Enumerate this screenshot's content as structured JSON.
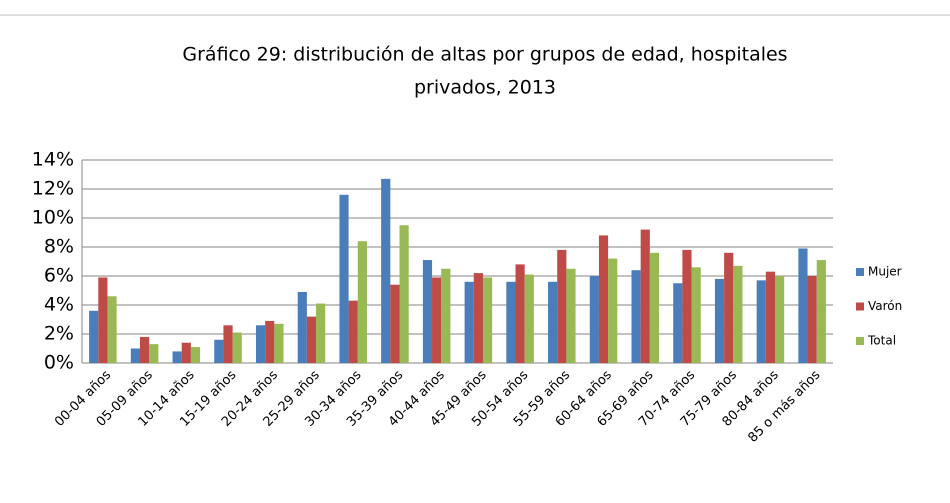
{
  "chart_data": {
    "type": "bar",
    "title": "Gráfico 29: distribución de altas por grupos de edad, hospitales privados, 2013",
    "categories": [
      "00-04 años",
      "05-09 años",
      "10-14 años",
      "15-19 años",
      "20-24 años",
      "25-29 años",
      "30-34 años",
      "35-39 años",
      "40-44 años",
      "45-49 años",
      "50-54 años",
      "55-59 años",
      "60-64 años",
      "65-69 años",
      "70-74 años",
      "75-79 años",
      "80-84 años",
      "85 o más años"
    ],
    "series": [
      {
        "name": "Mujer",
        "color": "#4a7ebb",
        "values": [
          3.6,
          1.0,
          0.8,
          1.6,
          2.6,
          4.9,
          11.6,
          12.7,
          7.1,
          5.6,
          5.6,
          5.6,
          6.0,
          6.4,
          5.5,
          5.8,
          5.7,
          7.9
        ]
      },
      {
        "name": "Varón",
        "color": "#be4b48",
        "values": [
          5.9,
          1.8,
          1.4,
          2.6,
          2.9,
          3.2,
          4.3,
          5.4,
          5.9,
          6.2,
          6.8,
          7.8,
          8.8,
          9.2,
          7.8,
          7.6,
          6.3,
          6.0
        ]
      },
      {
        "name": "Total",
        "color": "#98b954",
        "values": [
          4.6,
          1.3,
          1.1,
          2.1,
          2.7,
          4.1,
          8.4,
          9.5,
          6.5,
          5.9,
          6.1,
          6.5,
          7.2,
          7.6,
          6.6,
          6.7,
          6.0,
          7.1
        ]
      }
    ],
    "ylim": [
      0,
      14
    ],
    "yticks": [
      {
        "value": 0,
        "label": "0%"
      },
      {
        "value": 2,
        "label": "2%"
      },
      {
        "value": 4,
        "label": "4%"
      },
      {
        "value": 6,
        "label": "6%"
      },
      {
        "value": 8,
        "label": "8%"
      },
      {
        "value": 10,
        "label": "10%"
      },
      {
        "value": 12,
        "label": "12%"
      },
      {
        "value": 14,
        "label": "14%"
      }
    ],
    "grid": true,
    "legend": "right"
  }
}
